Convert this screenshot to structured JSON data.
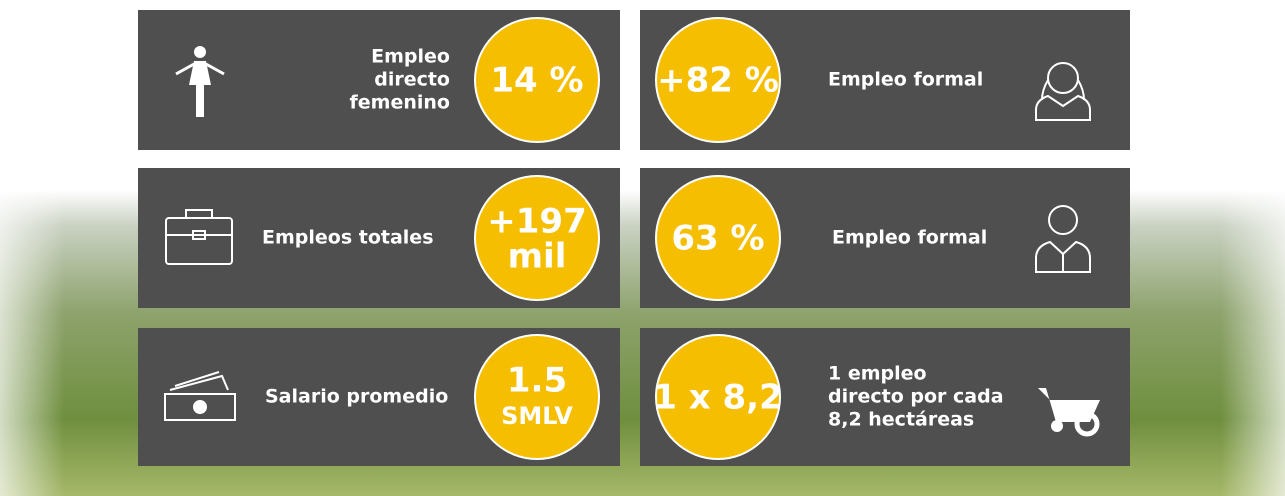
{
  "cards": [
    {
      "label": [
        "Empleo",
        "directo",
        "femenino"
      ],
      "value": [
        "14 %"
      ]
    },
    {
      "label": [
        "Empleo formal"
      ],
      "value": [
        "+82 %"
      ]
    },
    {
      "label": [
        "Empleos totales"
      ],
      "value": [
        "+197",
        "mil"
      ]
    },
    {
      "label": [
        "Empleo formal"
      ],
      "value": [
        "63 %"
      ]
    },
    {
      "label": [
        "Salario promedio"
      ],
      "value": [
        "1.5",
        "SMLV"
      ]
    },
    {
      "label": [
        "1 empleo",
        "directo por cada",
        "8,2 hectáreas"
      ],
      "value": [
        "1 x 8,2"
      ]
    }
  ]
}
